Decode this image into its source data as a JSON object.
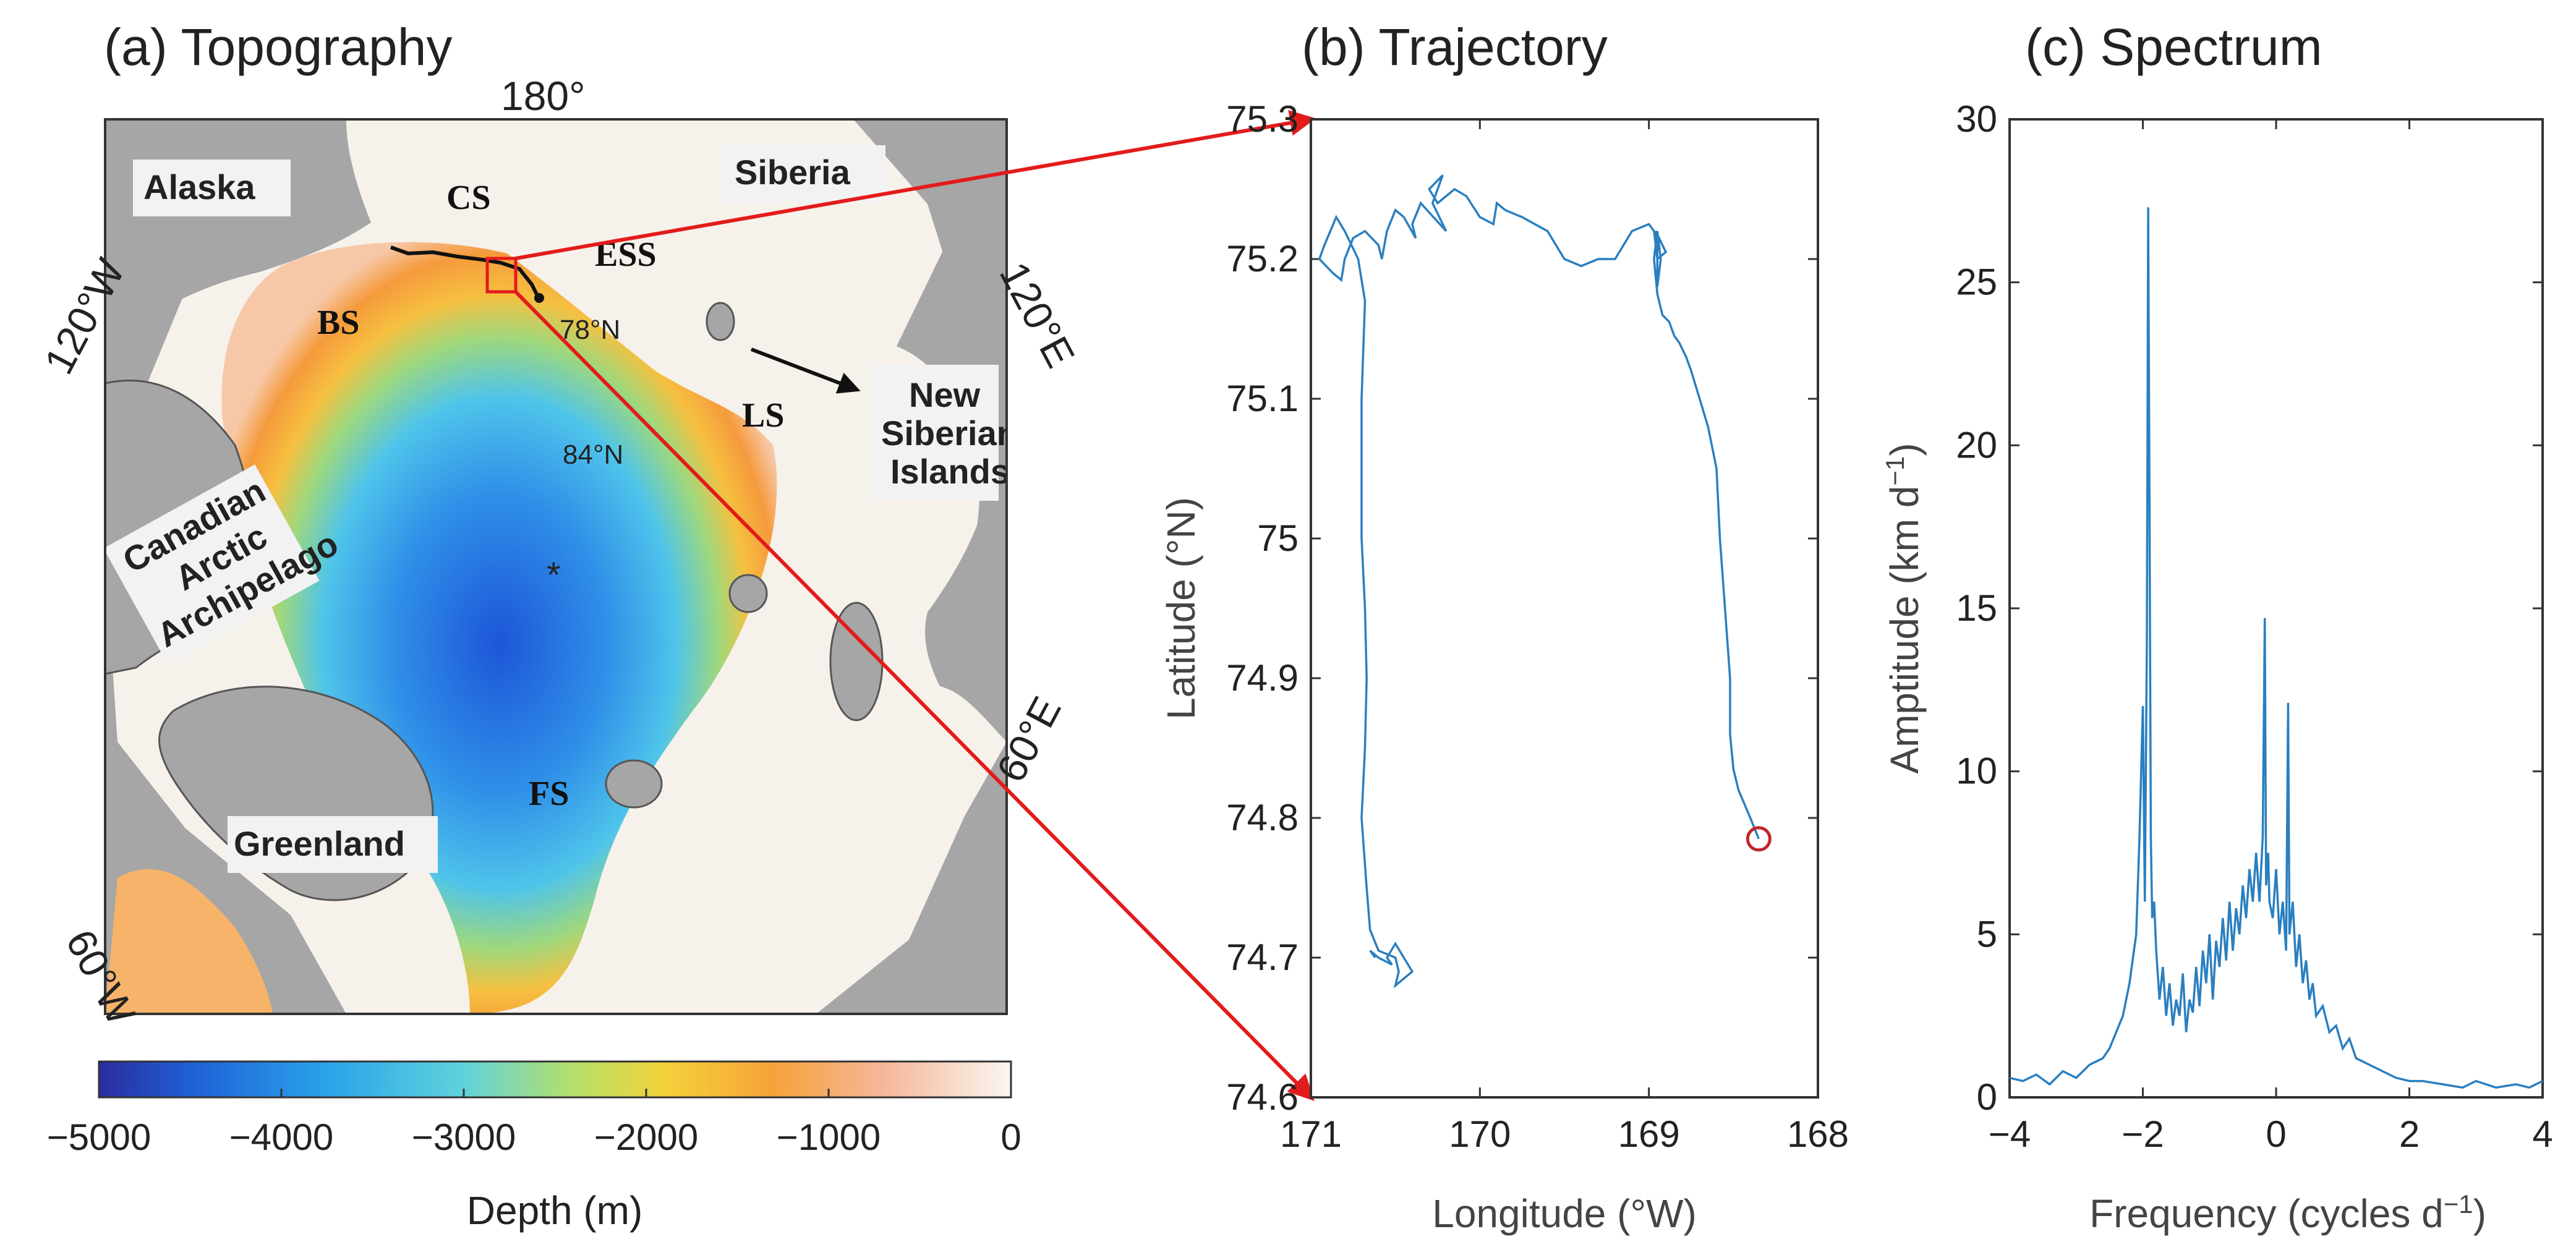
{
  "colors": {
    "trajectory": "#2a7fc0",
    "spectrum": "#2a7fc0",
    "marker": "#c0262a",
    "arrow": "#e31b1b",
    "land": "#a6a6a6",
    "shelf": "#f6f1ea",
    "deep": "#1f5fd6"
  },
  "panel_a": {
    "title": "(a) Topography",
    "lon_labels": [
      "180°",
      "120°W",
      "120°E",
      "60°W",
      "60°E"
    ],
    "lat_labels": [
      "78°N",
      "84°N"
    ],
    "place_labels": [
      "Alaska",
      "Siberia",
      "Greenland",
      "Canadian",
      "Arctic",
      "Archipelago",
      "New",
      "Siberian",
      "Islands"
    ],
    "sea_labels": [
      "CS",
      "ESS",
      "BS",
      "LS",
      "FS"
    ],
    "station_marker": "*",
    "colorbar": {
      "ticks": [
        "−5000",
        "−4000",
        "−3000",
        "−2000",
        "−1000",
        "0"
      ],
      "label": "Depth (m)"
    }
  },
  "chart_data": [
    {
      "type": "line",
      "title": "(b) Trajectory",
      "xlabel": "Longitude (°W)",
      "ylabel": "Latitude (°N)",
      "xlim": [
        171,
        168
      ],
      "ylim": [
        74.6,
        75.3
      ],
      "xticks": [
        "171",
        "170",
        "169",
        "168"
      ],
      "yticks": [
        "74.6",
        "74.7",
        "74.8",
        "74.9",
        "75",
        "75.1",
        "75.2",
        "75.3"
      ],
      "end_marker": [
        168.35,
        74.785
      ],
      "x": [
        168.35,
        168.4,
        168.47,
        168.5,
        168.52,
        168.52,
        168.55,
        168.58,
        168.6,
        168.65,
        168.7,
        168.75,
        168.78,
        168.82,
        168.85,
        168.88,
        168.92,
        168.95,
        168.97,
        168.95,
        168.93,
        168.95,
        168.95,
        168.96,
        168.9,
        168.95,
        168.97,
        169.0,
        169.1,
        169.2,
        169.3,
        169.4,
        169.5,
        169.6,
        169.75,
        169.85,
        169.9,
        169.92,
        170.0,
        170.08,
        170.15,
        170.25,
        170.3,
        170.22,
        170.28,
        170.2,
        170.35,
        170.4,
        170.38,
        170.45,
        170.5,
        170.55,
        170.58,
        170.6,
        170.68,
        170.75,
        170.8,
        170.82,
        170.87,
        170.95,
        170.92,
        170.85,
        170.8,
        170.72,
        170.68,
        170.7,
        170.7,
        170.68,
        170.67,
        170.68,
        170.7,
        170.67,
        170.65,
        170.6,
        170.5,
        170.48,
        170.5,
        170.45,
        170.4,
        170.45,
        170.5,
        170.55,
        170.52,
        170.6,
        170.65,
        170.62
      ],
      "y": [
        74.785,
        74.8,
        74.82,
        74.835,
        74.86,
        74.9,
        74.95,
        75.0,
        75.05,
        75.08,
        75.1,
        75.12,
        75.13,
        75.14,
        75.145,
        75.155,
        75.16,
        75.175,
        75.2,
        75.22,
        75.2,
        75.18,
        75.21,
        75.22,
        75.205,
        75.2,
        75.22,
        75.225,
        75.22,
        75.2,
        75.2,
        75.195,
        75.2,
        75.22,
        75.23,
        75.235,
        75.24,
        75.225,
        75.23,
        75.245,
        75.25,
        75.24,
        75.25,
        75.26,
        75.24,
        75.22,
        75.24,
        75.225,
        75.215,
        75.23,
        75.235,
        75.22,
        75.2,
        75.21,
        75.22,
        75.215,
        75.2,
        75.185,
        75.19,
        75.2,
        75.21,
        75.23,
        75.22,
        75.2,
        75.17,
        75.1,
        75.0,
        74.95,
        74.9,
        74.85,
        74.8,
        74.75,
        74.72,
        74.705,
        74.7,
        74.69,
        74.68,
        74.685,
        74.69,
        74.7,
        74.71,
        74.7,
        74.695,
        74.7,
        74.705,
        74.7
      ]
    },
    {
      "type": "line",
      "title": "(c) Spectrum",
      "xlabel": "Frequency (cycles d",
      "xlabel_sup": "−1",
      "xlabel_end": ")",
      "ylabel": "Amptitude (km d",
      "ylabel_sup": "−1",
      "ylabel_end": ")",
      "xlim": [
        -4,
        4
      ],
      "ylim": [
        0,
        30
      ],
      "xticks": [
        "−4",
        "−2",
        "0",
        "2",
        "4"
      ],
      "yticks": [
        "0",
        "5",
        "10",
        "15",
        "20",
        "25",
        "30"
      ],
      "x": [
        -4.0,
        -3.8,
        -3.6,
        -3.4,
        -3.2,
        -3.0,
        -2.8,
        -2.6,
        -2.5,
        -2.4,
        -2.3,
        -2.2,
        -2.1,
        -2.05,
        -2.0,
        -1.97,
        -1.94,
        -1.92,
        -1.9,
        -1.88,
        -1.86,
        -1.83,
        -1.8,
        -1.75,
        -1.7,
        -1.65,
        -1.6,
        -1.55,
        -1.5,
        -1.45,
        -1.4,
        -1.35,
        -1.3,
        -1.25,
        -1.2,
        -1.15,
        -1.1,
        -1.05,
        -1.0,
        -0.95,
        -0.9,
        -0.85,
        -0.8,
        -0.75,
        -0.7,
        -0.65,
        -0.6,
        -0.55,
        -0.5,
        -0.45,
        -0.4,
        -0.35,
        -0.3,
        -0.25,
        -0.2,
        -0.17,
        -0.15,
        -0.12,
        -0.1,
        -0.05,
        0.0,
        0.05,
        0.1,
        0.15,
        0.18,
        0.2,
        0.25,
        0.3,
        0.35,
        0.4,
        0.45,
        0.5,
        0.55,
        0.6,
        0.7,
        0.8,
        0.9,
        1.0,
        1.1,
        1.2,
        1.4,
        1.6,
        1.8,
        2.0,
        2.2,
        2.5,
        2.8,
        3.0,
        3.3,
        3.6,
        3.8,
        4.0
      ],
      "y": [
        0.6,
        0.5,
        0.7,
        0.4,
        0.8,
        0.6,
        1.0,
        1.2,
        1.5,
        2.0,
        2.5,
        3.5,
        5.0,
        8.0,
        12.0,
        6.0,
        14.0,
        27.3,
        18.0,
        8.0,
        5.5,
        6.0,
        4.5,
        3.0,
        4.0,
        2.5,
        3.5,
        2.2,
        3.0,
        2.5,
        3.8,
        2.0,
        3.0,
        2.6,
        4.0,
        2.8,
        4.5,
        3.5,
        5.0,
        3.0,
        4.8,
        4.0,
        5.5,
        4.2,
        6.0,
        4.5,
        5.8,
        5.0,
        6.5,
        5.5,
        7.0,
        6.0,
        7.5,
        6.0,
        8.0,
        14.7,
        6.5,
        7.5,
        6.0,
        5.5,
        7.0,
        5.0,
        6.0,
        4.5,
        12.1,
        5.0,
        6.0,
        4.0,
        5.0,
        3.5,
        4.2,
        3.0,
        3.5,
        2.5,
        2.8,
        2.0,
        2.2,
        1.5,
        1.8,
        1.2,
        1.0,
        0.8,
        0.6,
        0.5,
        0.5,
        0.4,
        0.3,
        0.5,
        0.3,
        0.4,
        0.3,
        0.5
      ]
    }
  ]
}
